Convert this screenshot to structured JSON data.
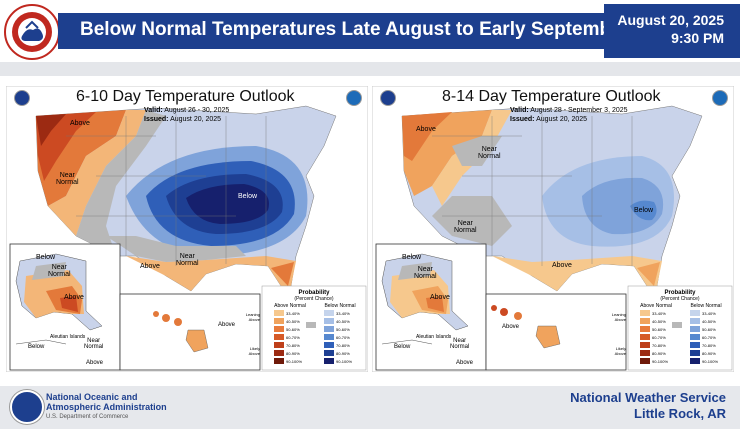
{
  "header": {
    "title": "Below Normal Temperatures Late August to Early September",
    "date": "August 20, 2025",
    "time": "9:30 PM",
    "logo_text": "NATIONAL WEATHER SERVICE"
  },
  "panels": [
    {
      "title": "6-10 Day Temperature Outlook",
      "valid_label": "Valid:",
      "valid_value": "August 26 - 30, 2025",
      "issued_label": "Issued:",
      "issued_value": "August 20, 2025",
      "labels": {
        "above_nw": "Above",
        "near_normal_w": "Near\nNormal",
        "below_center": "Below",
        "above_south": "Above",
        "near_normal_s": "Near\nNormal",
        "alaska_below": "Below",
        "alaska_near": "Near\nNormal",
        "alaska_above": "Above",
        "aleutian": "Aleutian Islands",
        "aleutian_below": "Below",
        "aleutian_near": "Near\nNormal",
        "aleutian_above": "Above",
        "hawaii_above": "Above"
      }
    },
    {
      "title": "8-14 Day Temperature Outlook",
      "valid_label": "Valid:",
      "valid_value": "August 28 - September 3, 2025",
      "issued_label": "Issued:",
      "issued_value": "August 20, 2025",
      "labels": {
        "above_nw": "Above",
        "near_normal_w": "Near\nNormal",
        "near_normal_sw": "Near\nNormal",
        "below_center": "Below",
        "above_south": "Above",
        "alaska_below": "Below",
        "alaska_near": "Near\nNormal",
        "alaska_above": "Above",
        "aleutian": "Aleutian Islands",
        "aleutian_near": "Near\nNormal",
        "aleutian_above": "Above",
        "aleutian_below": "Below",
        "hawaii_above": "Above"
      }
    }
  ],
  "legend": {
    "title": "Probability",
    "subtitle": "(Percent Chance)",
    "above_header": "Above Normal",
    "below_header": "Below Normal",
    "leaning_above": "Leaning\nAbove",
    "likely_above": "Likely\nAbove",
    "leaning_below": "Leaning\nBelow",
    "likely_below": "Likely\nBelow",
    "ranges": [
      "33-40%",
      "40-50%",
      "50-60%",
      "60-70%",
      "70-80%",
      "80-90%",
      "90-100%"
    ],
    "above_colors": [
      "#f6c88d",
      "#f0a35d",
      "#e87b3c",
      "#d65a26",
      "#be3f1a",
      "#9c2a12",
      "#6f1a0a"
    ],
    "below_colors": [
      "#c5d4ec",
      "#a6bfe6",
      "#7fa3da",
      "#5688cf",
      "#2f5fb8",
      "#1e3f93",
      "#16206d"
    ]
  },
  "footer": {
    "noaa_line1": "National Oceanic and",
    "noaa_line2": "Atmospheric Administration",
    "noaa_line3": "U.S. Department of Commerce",
    "nws_line1": "National Weather Service",
    "nws_line2": "Little Rock, AR"
  }
}
